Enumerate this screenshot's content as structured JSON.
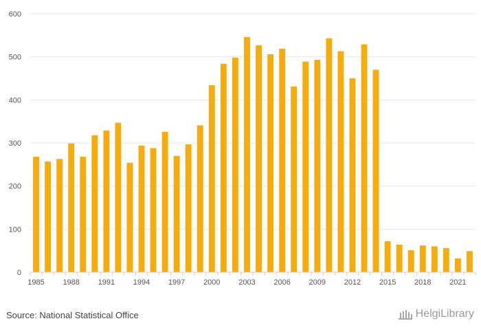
{
  "chart_data": {
    "type": "bar",
    "categories": [
      "1985",
      "1986",
      "1987",
      "1988",
      "1989",
      "1990",
      "1991",
      "1992",
      "1993",
      "1994",
      "1995",
      "1996",
      "1997",
      "1998",
      "1999",
      "2000",
      "2001",
      "2002",
      "2003",
      "2004",
      "2005",
      "2006",
      "2007",
      "2008",
      "2009",
      "2010",
      "2011",
      "2012",
      "2013",
      "2014",
      "2015",
      "2016",
      "2017",
      "2018",
      "2019",
      "2020",
      "2021",
      "2022"
    ],
    "values": [
      268,
      257,
      263,
      299,
      268,
      318,
      329,
      347,
      254,
      294,
      288,
      326,
      270,
      297,
      341,
      434,
      484,
      498,
      546,
      527,
      506,
      519,
      431,
      489,
      493,
      543,
      513,
      450,
      529,
      470,
      72,
      64,
      51,
      62,
      60,
      56,
      32,
      49
    ],
    "x_tick_labels": [
      "1985",
      "1988",
      "1991",
      "1994",
      "1997",
      "2000",
      "2003",
      "2006",
      "2009",
      "2012",
      "2015",
      "2018",
      "2021"
    ],
    "y_ticks": [
      0,
      100,
      200,
      300,
      400,
      500,
      600
    ],
    "ylim": [
      0,
      600
    ],
    "title": "",
    "xlabel": "",
    "ylabel": "",
    "grid": true,
    "colors": {
      "bar": "#F5AC0C",
      "grid": "#e6e6e6",
      "axis": "#cfcfcf",
      "text": "#555555"
    }
  },
  "footer": {
    "source": "Source: National Statistical Office",
    "brand": "HelgiLibrary",
    "brand_icon": "library-building-icon"
  }
}
